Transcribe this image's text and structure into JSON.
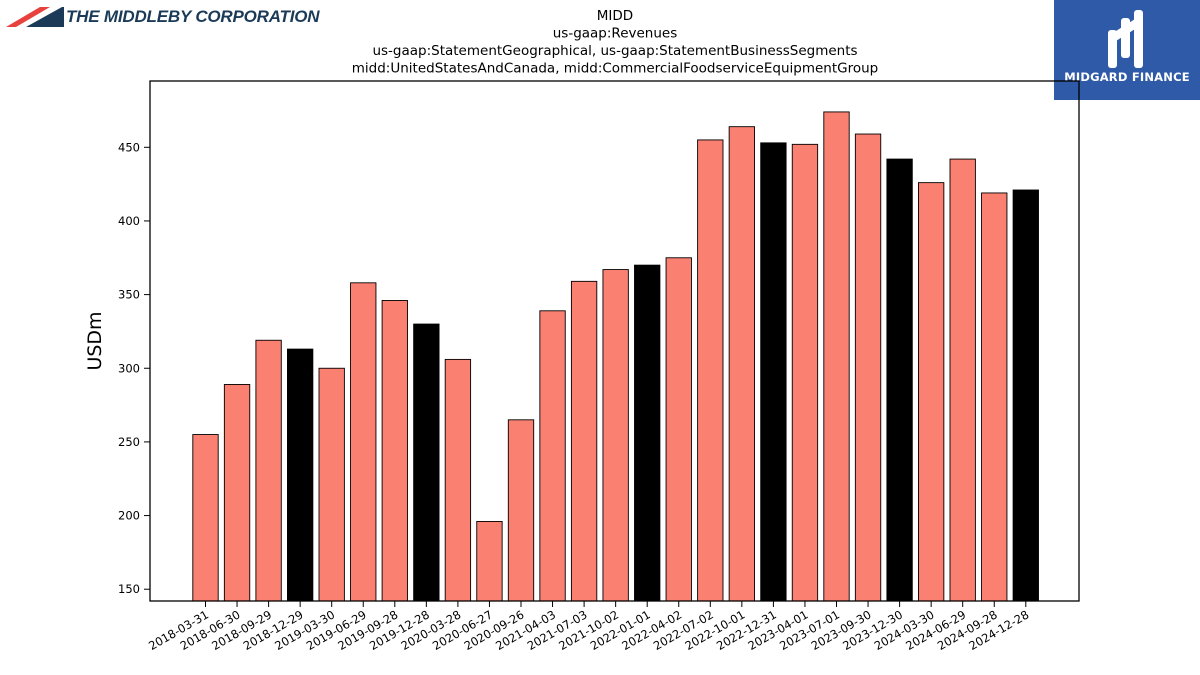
{
  "branding": {
    "left_logo_text": "THE MIDDLEBY CORPORATION",
    "right_logo_text": "MIDGARD FINANCE",
    "left_colors": [
      "#e8423f",
      "#1b3a57"
    ],
    "right_bg_color": "#2f5aa8"
  },
  "chart_data": {
    "type": "bar",
    "title_lines": [
      "MIDD",
      "us-gaap:Revenues",
      "us-gaap:StatementGeographical, us-gaap:StatementBusinessSegments",
      "midd:UnitedStatesAndCanada, midd:CommercialFoodserviceEquipmentGroup"
    ],
    "xlabel": "",
    "ylabel": "USDm",
    "ylim": [
      142,
      495
    ],
    "yticks": [
      150,
      200,
      250,
      300,
      350,
      400,
      450
    ],
    "grid": false,
    "colors": {
      "quarter": "#fa8072",
      "year_end": "#000000",
      "edge": "#000000"
    },
    "categories": [
      "2018-03-31",
      "2018-06-30",
      "2018-09-29",
      "2018-12-29",
      "2019-03-30",
      "2019-06-29",
      "2019-09-28",
      "2019-12-28",
      "2020-03-28",
      "2020-06-27",
      "2020-09-26",
      "2021-04-03",
      "2021-07-03",
      "2021-10-02",
      "2022-01-01",
      "2022-04-02",
      "2022-07-02",
      "2022-10-01",
      "2022-12-31",
      "2023-04-01",
      "2023-07-01",
      "2023-09-30",
      "2023-12-30",
      "2024-03-30",
      "2024-06-29",
      "2024-09-28",
      "2024-12-28"
    ],
    "values": [
      255,
      289,
      319,
      313,
      300,
      358,
      346,
      330,
      306,
      196,
      265,
      339,
      359,
      367,
      370,
      375,
      455,
      464,
      453,
      452,
      474,
      459,
      442,
      426,
      442,
      419,
      421
    ],
    "highlight": [
      false,
      false,
      false,
      true,
      false,
      false,
      false,
      true,
      false,
      false,
      false,
      false,
      false,
      false,
      true,
      false,
      false,
      false,
      true,
      false,
      false,
      false,
      true,
      false,
      false,
      false,
      true
    ]
  }
}
